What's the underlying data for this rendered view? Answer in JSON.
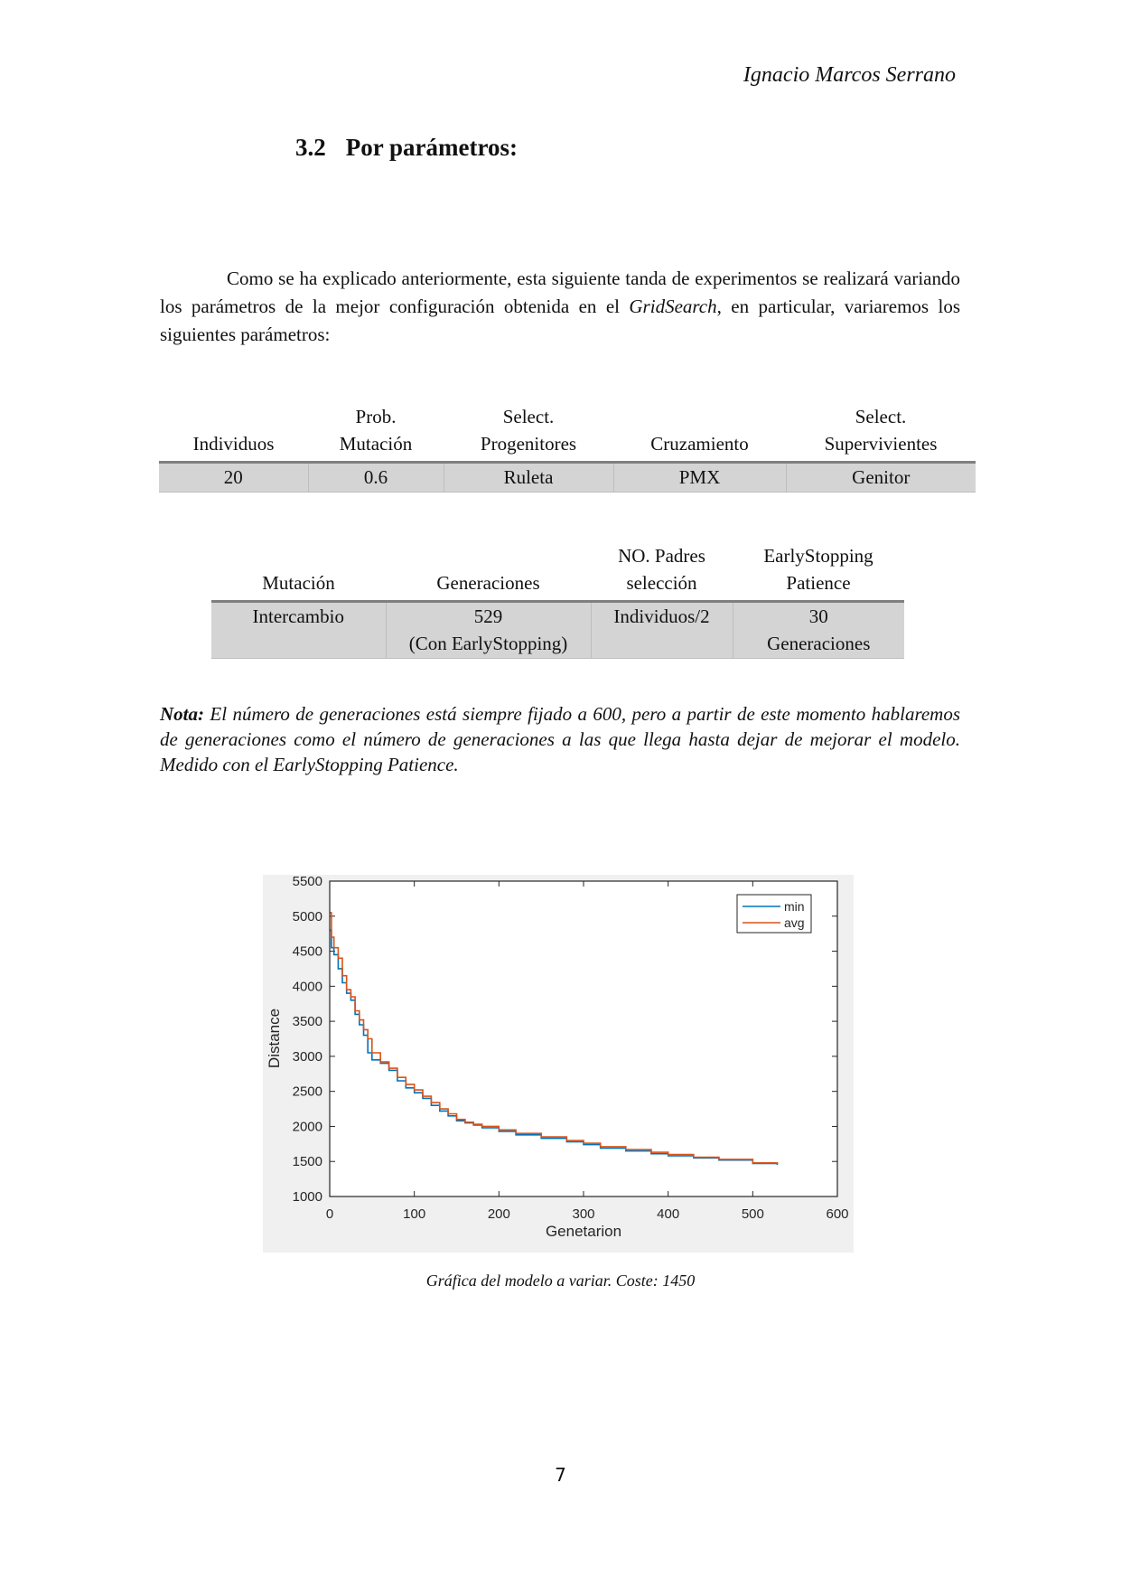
{
  "header": {
    "author": "Ignacio Marcos Serrano"
  },
  "section": {
    "number": "3.2",
    "title": "Por parámetros:"
  },
  "intro": {
    "before": "Como se ha explicado anteriormente, esta siguiente tanda de experimentos se realizará variando los parámetros de la mejor configuración obtenida en el ",
    "emphasis": "GridSearch",
    "after": ", en particular, variaremos los siguientes parámetros:"
  },
  "table1": {
    "headers": [
      [
        "Individuos"
      ],
      [
        "Prob.",
        "Mutación"
      ],
      [
        "Select.",
        "Progenitores"
      ],
      [
        "Cruzamiento"
      ],
      [
        "Select.",
        "Supervivientes"
      ]
    ],
    "row": [
      [
        "20"
      ],
      [
        "0.6"
      ],
      [
        "Ruleta"
      ],
      [
        "PMX"
      ],
      [
        "Genitor"
      ]
    ]
  },
  "table2": {
    "headers": [
      [
        "Mutación"
      ],
      [
        "Generaciones"
      ],
      [
        "NO. Padres",
        "selección"
      ],
      [
        "EarlyStopping",
        "Patience"
      ]
    ],
    "row": [
      [
        "Intercambio"
      ],
      [
        "529",
        "(Con EarlyStopping)"
      ],
      [
        "Individuos/2"
      ],
      [
        "30",
        "Generaciones"
      ]
    ]
  },
  "note": {
    "label": "Nota:",
    "text": " El número de generaciones está siempre fijado a 600, pero a partir de este momento hablaremos de generaciones como el número de generaciones a las que llega hasta dejar de mejorar el modelo. Medido con el EarlyStopping Patience."
  },
  "chart_data": {
    "type": "line",
    "title": "",
    "xlabel": "Genetarion",
    "ylabel": "Distance",
    "xlim": [
      0,
      600
    ],
    "ylim": [
      1000,
      5500
    ],
    "xticks": [
      0,
      100,
      200,
      300,
      400,
      500,
      600
    ],
    "yticks": [
      1000,
      1500,
      2000,
      2500,
      3000,
      3500,
      4000,
      4500,
      5000,
      5500
    ],
    "grid": false,
    "legend_position": "top-right",
    "series": [
      {
        "name": "min",
        "color": "#0072bd",
        "x": [
          0,
          2,
          5,
          10,
          15,
          20,
          25,
          30,
          35,
          40,
          45,
          50,
          60,
          70,
          80,
          90,
          100,
          110,
          120,
          130,
          140,
          150,
          160,
          170,
          180,
          200,
          220,
          250,
          280,
          300,
          320,
          350,
          380,
          400,
          430,
          460,
          500,
          529
        ],
        "y": [
          4800,
          4550,
          4450,
          4250,
          4050,
          3900,
          3800,
          3600,
          3450,
          3300,
          3050,
          2950,
          2900,
          2800,
          2650,
          2550,
          2480,
          2400,
          2300,
          2220,
          2150,
          2080,
          2050,
          2020,
          1980,
          1930,
          1880,
          1830,
          1780,
          1740,
          1690,
          1650,
          1610,
          1580,
          1550,
          1520,
          1470,
          1450
        ]
      },
      {
        "name": "avg",
        "color": "#d95319",
        "x": [
          0,
          2,
          5,
          10,
          15,
          20,
          25,
          30,
          35,
          40,
          45,
          50,
          60,
          70,
          80,
          90,
          100,
          110,
          120,
          130,
          140,
          150,
          160,
          170,
          180,
          200,
          220,
          250,
          280,
          300,
          320,
          350,
          380,
          400,
          430,
          460,
          500,
          529
        ],
        "y": [
          5050,
          4700,
          4550,
          4400,
          4150,
          3950,
          3850,
          3650,
          3520,
          3380,
          3250,
          3050,
          2920,
          2830,
          2700,
          2600,
          2520,
          2430,
          2340,
          2250,
          2180,
          2100,
          2060,
          2030,
          2000,
          1950,
          1900,
          1850,
          1800,
          1760,
          1710,
          1670,
          1630,
          1600,
          1560,
          1530,
          1480,
          1460
        ]
      }
    ]
  },
  "caption": "Gráfica del modelo a variar. Coste: 1450",
  "page_number": "7"
}
